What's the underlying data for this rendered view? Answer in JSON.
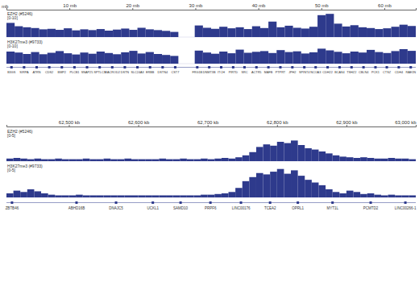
{
  "chart_data": [
    {
      "type": "histogram",
      "xlabel": "mb",
      "ylabel": "[0-10]",
      "tick_labels": "x",
      "xlim": [
        0,
        65
      ],
      "xticks": [
        {
          "value": 10,
          "label": "10 mb"
        },
        {
          "value": 20,
          "label": "20 mb"
        },
        {
          "value": 30,
          "label": "30 mb"
        },
        {
          "value": 40,
          "label": "40 mb"
        },
        {
          "value": 50,
          "label": "50 mb"
        },
        {
          "value": 60,
          "label": "60 mb"
        }
      ],
      "ylim": [
        0,
        10
      ],
      "bins": [
        0,
        1.3,
        2.6,
        3.9,
        5.2,
        6.5,
        7.8,
        9.1,
        10.4,
        11.7,
        13,
        14.3,
        15.6,
        16.9,
        18.2,
        19.5,
        20.8,
        22.1,
        23.4,
        24.7,
        26,
        27.3,
        28.6,
        29.9,
        31.2,
        32.5,
        33.8,
        35.1,
        36.4,
        37.7,
        39,
        40.3,
        41.6,
        42.9,
        44.2,
        45.5,
        46.8,
        48.1,
        49.4,
        50.7,
        52,
        53.3,
        54.6,
        55.9,
        57.2,
        58.5,
        59.8,
        61.1,
        62.4,
        63.7,
        65
      ],
      "series": [
        {
          "name": "EZH2 (#5246)",
          "color": "#2e3a8c",
          "values": [
            5.5,
            4.2,
            3.8,
            3.5,
            3.0,
            3.2,
            2.8,
            3.4,
            2.6,
            3.0,
            2.7,
            3.1,
            2.5,
            2.9,
            3.3,
            2.8,
            3.6,
            3.0,
            2.7,
            2.4,
            2.0,
            null,
            null,
            4.5,
            3.6,
            3.2,
            4.0,
            3.4,
            3.8,
            3.1,
            4.2,
            3.5,
            6.0,
            3.8,
            4.4,
            3.6,
            3.3,
            4.0,
            8.5,
            9.0,
            5.2,
            4.1,
            4.6,
            3.8,
            3.5,
            3.1,
            3.4,
            4.0,
            4.8,
            4.3
          ]
        },
        {
          "name": "H3K27me3 (#9733)",
          "color": "#2e3a8c",
          "values": [
            5.0,
            4.6,
            4.0,
            4.8,
            3.9,
            4.5,
            5.2,
            4.3,
            3.8,
            4.6,
            4.1,
            5.0,
            4.4,
            3.9,
            4.7,
            5.3,
            4.2,
            4.8,
            4.0,
            3.6,
            3.2,
            null,
            null,
            5.4,
            4.6,
            4.1,
            5.0,
            4.3,
            5.8,
            4.5,
            4.9,
            5.2,
            4.4,
            5.6,
            4.8,
            5.1,
            4.2,
            4.7,
            6.2,
            5.5,
            4.9,
            4.3,
            5.0,
            4.6,
            5.7,
            4.8,
            4.4,
            5.2,
            6.0,
            5.3
          ]
        }
      ],
      "annotations": [
        {
          "x": 0.8,
          "text": "B3GS"
        },
        {
          "x": 2.8,
          "text": "SIRPA"
        },
        {
          "x": 4.8,
          "text": "ATRN"
        },
        {
          "x": 6.8,
          "text": "CDS2"
        },
        {
          "x": 8.8,
          "text": "BMP2"
        },
        {
          "x": 10.8,
          "text": "PLCB1"
        },
        {
          "x": 12.8,
          "text": "SNAP25"
        },
        {
          "x": 14.8,
          "text": "SPTLC3"
        },
        {
          "x": 16.8,
          "text": "MACROD2"
        },
        {
          "x": 18.8,
          "text": "DSTN"
        },
        {
          "x": 20.8,
          "text": "SLC24A3"
        },
        {
          "x": 22.8,
          "text": "ERBB"
        },
        {
          "x": 24.8,
          "text": "DSTN4"
        },
        {
          "x": 26.8,
          "text": "CST7"
        },
        {
          "x": 30.3,
          "text": "FRG1B"
        },
        {
          "x": 32.2,
          "text": "DNMT3B"
        },
        {
          "x": 34.1,
          "text": "ITCH"
        },
        {
          "x": 36.0,
          "text": "PIRTD"
        },
        {
          "x": 37.8,
          "text": "SRC"
        },
        {
          "x": 39.7,
          "text": "ACTR5"
        },
        {
          "x": 41.6,
          "text": "MAFB"
        },
        {
          "x": 43.5,
          "text": "PTPRT"
        },
        {
          "x": 45.4,
          "text": "JPH2"
        },
        {
          "x": 47.3,
          "text": "SPINT4"
        },
        {
          "x": 49.1,
          "text": "NCOA3"
        },
        {
          "x": 51.0,
          "text": "CDH22"
        },
        {
          "x": 52.9,
          "text": "BCAS4"
        },
        {
          "x": 54.8,
          "text": "TSHZ2"
        },
        {
          "x": 56.7,
          "text": "CBLN4"
        },
        {
          "x": 58.6,
          "text": "PCK1"
        },
        {
          "x": 60.4,
          "text": "CTSZ"
        },
        {
          "x": 62.3,
          "text": "CDH4"
        },
        {
          "x": 64.2,
          "text": "RAE1N"
        }
      ]
    },
    {
      "type": "histogram",
      "ylabel": "[0-5]",
      "tick_labels": "x",
      "xlim": [
        62410,
        63000
      ],
      "xticks": [
        {
          "value": 62500,
          "label": "62,500 kb"
        },
        {
          "value": 62600,
          "label": "62,600 kb"
        },
        {
          "value": 62700,
          "label": "62,700 kb"
        },
        {
          "value": 62800,
          "label": "62,800 kb"
        },
        {
          "value": 62900,
          "label": "62,900 kb"
        },
        {
          "value": 63000,
          "label": "63,000 kb"
        }
      ],
      "ylim": [
        0,
        5
      ],
      "bins": [
        62410,
        62420,
        62430,
        62440,
        62450,
        62460,
        62470,
        62480,
        62490,
        62500,
        62510,
        62520,
        62530,
        62540,
        62550,
        62560,
        62570,
        62580,
        62590,
        62600,
        62610,
        62620,
        62630,
        62640,
        62650,
        62660,
        62670,
        62680,
        62690,
        62700,
        62710,
        62720,
        62730,
        62740,
        62750,
        62760,
        62770,
        62780,
        62790,
        62800,
        62810,
        62820,
        62830,
        62840,
        62850,
        62860,
        62870,
        62880,
        62890,
        62900,
        62910,
        62920,
        62930,
        62940,
        62950,
        62960,
        62970,
        62980,
        62990,
        63000
      ],
      "series": [
        {
          "name": "EZH2 (#5246)",
          "color": "#2e3a8c",
          "values": [
            0.4,
            0.5,
            0.4,
            0.3,
            0.4,
            0.3,
            0.3,
            0.4,
            0.3,
            0.3,
            0.3,
            0.4,
            0.3,
            0.3,
            0.4,
            0.3,
            0.3,
            0.4,
            0.3,
            0.3,
            0.3,
            0.3,
            0.4,
            0.3,
            0.3,
            0.4,
            0.3,
            0.3,
            0.4,
            0.3,
            0.4,
            0.5,
            0.4,
            0.6,
            0.9,
            1.4,
            2.2,
            2.6,
            2.4,
            3.0,
            2.8,
            3.2,
            2.5,
            2.0,
            1.8,
            1.5,
            1.2,
            0.9,
            0.7,
            0.6,
            0.5,
            0.6,
            0.5,
            0.4,
            0.4,
            0.5,
            0.4,
            0.4,
            0.3
          ]
        },
        {
          "name": "H3K27me3 (#9733)",
          "color": "#2e3a8c",
          "values": [
            0.6,
            1.0,
            0.8,
            1.2,
            0.9,
            0.6,
            0.4,
            0.3,
            0.3,
            0.3,
            0.4,
            0.3,
            0.3,
            0.3,
            0.3,
            0.3,
            0.3,
            0.3,
            0.3,
            0.3,
            0.3,
            0.3,
            0.3,
            0.3,
            0.3,
            0.3,
            0.3,
            0.3,
            0.4,
            0.4,
            0.5,
            0.6,
            0.8,
            1.4,
            2.4,
            3.0,
            3.6,
            3.4,
            3.8,
            4.2,
            3.5,
            4.0,
            3.2,
            2.6,
            2.2,
            1.8,
            1.2,
            0.8,
            0.6,
            1.0,
            0.8,
            0.5,
            0.6,
            0.4,
            0.3,
            0.4,
            0.3,
            0.3,
            0.3
          ]
        }
      ],
      "annotations": [
        {
          "x": 62418,
          "text": "ZBTB46"
        },
        {
          "x": 62511,
          "text": "ABHD16B"
        },
        {
          "x": 62568,
          "text": "DNAJC5"
        },
        {
          "x": 62621,
          "text": "UCKL1"
        },
        {
          "x": 62661,
          "text": "SAMD10"
        },
        {
          "x": 62704,
          "text": "PRPF6"
        },
        {
          "x": 62748,
          "text": "LINC00176"
        },
        {
          "x": 62790,
          "text": "TCEA2"
        },
        {
          "x": 62830,
          "text": "OPRL1"
        },
        {
          "x": 62880,
          "text": "MYT1L"
        },
        {
          "x": 62935,
          "text": "PCMTD2"
        },
        {
          "x": 62985,
          "text": "LINC00266-1"
        }
      ]
    }
  ]
}
